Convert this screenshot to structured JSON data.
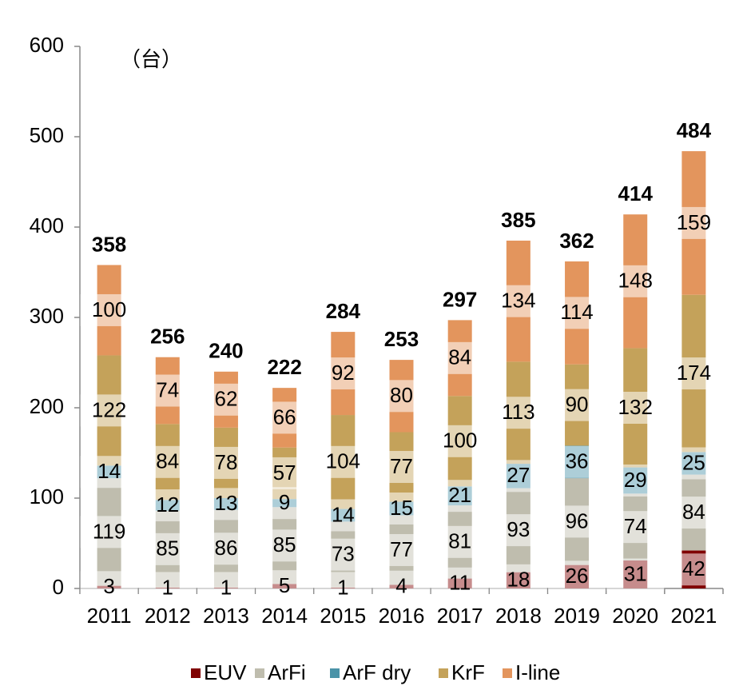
{
  "chart_data": {
    "type": "stacked_bar",
    "unit_label": "（台）",
    "categories": [
      "2011",
      "2012",
      "2013",
      "2014",
      "2015",
      "2016",
      "2017",
      "2018",
      "2019",
      "2020",
      "2021"
    ],
    "series": [
      {
        "name": "EUV",
        "color": "#800000",
        "values": [
          3,
          1,
          1,
          5,
          1,
          4,
          11,
          18,
          26,
          31,
          42
        ]
      },
      {
        "name": "ArFi",
        "color": "#bfbdae",
        "values": [
          119,
          85,
          86,
          85,
          73,
          77,
          81,
          93,
          96,
          74,
          84
        ]
      },
      {
        "name": "ArF dry",
        "color": "#4a93a8",
        "values": [
          14,
          12,
          13,
          9,
          14,
          15,
          21,
          27,
          36,
          29,
          25
        ]
      },
      {
        "name": "KrF",
        "color": "#c4a25a",
        "values": [
          122,
          84,
          78,
          57,
          104,
          77,
          100,
          113,
          90,
          132,
          174
        ]
      },
      {
        "name": "I-line",
        "color": "#e3955d",
        "values": [
          100,
          74,
          62,
          66,
          92,
          80,
          84,
          134,
          114,
          148,
          159
        ]
      }
    ],
    "totals": [
      358,
      256,
      240,
      222,
      284,
      253,
      297,
      385,
      362,
      414,
      484
    ],
    "ylim": [
      0,
      600
    ],
    "yticks": [
      0,
      100,
      200,
      300,
      400,
      500,
      600
    ],
    "legend": "bottom"
  }
}
